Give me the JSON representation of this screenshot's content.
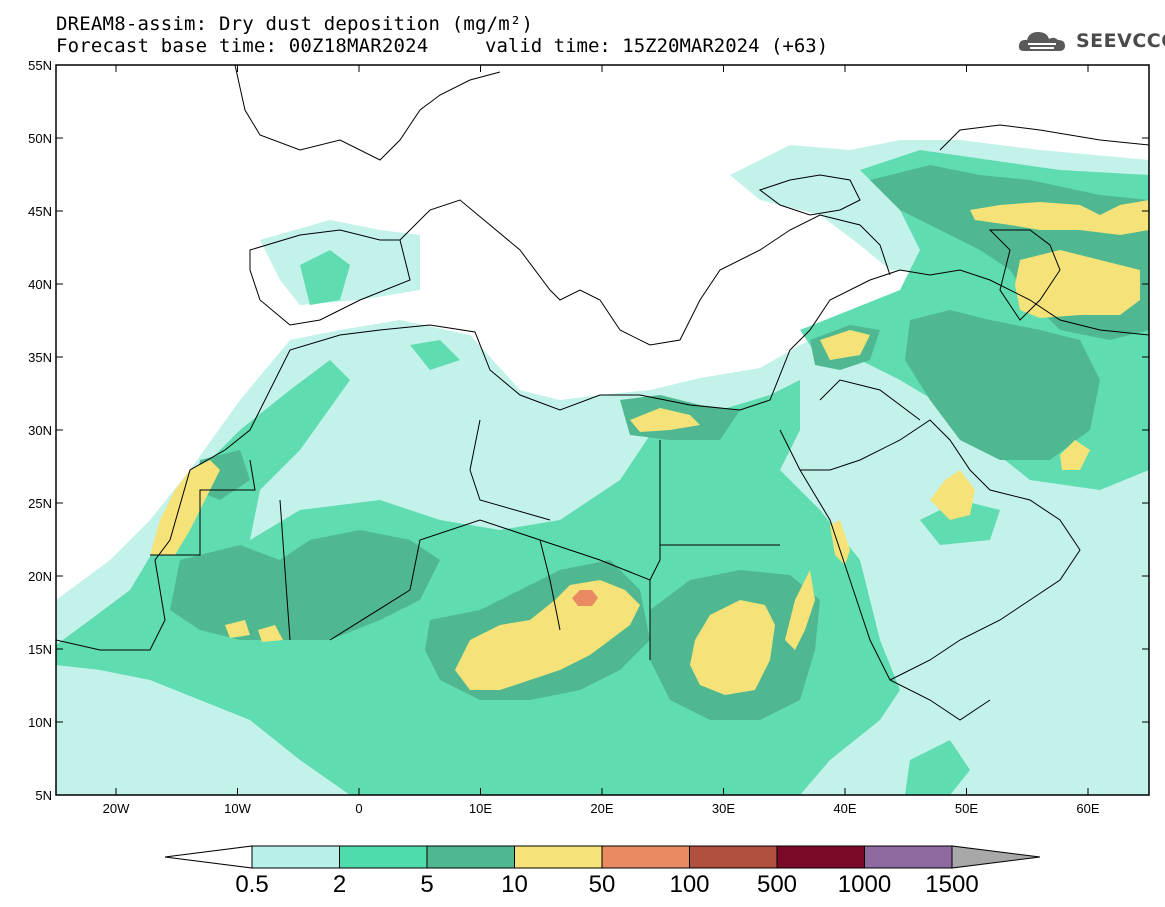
{
  "title": {
    "line1": "DREAM8-assim: Dry dust deposition (mg/m²)",
    "line2a": "Forecast base time: 00Z18MAR2024",
    "line2b": "valid time: 15Z20MAR2024 (+63)"
  },
  "logo": {
    "text": "SEEVCCC",
    "icon": "cloud-logo-icon"
  },
  "axes": {
    "lat_labels": [
      "55N",
      "50N",
      "45N",
      "40N",
      "35N",
      "30N",
      "25N",
      "20N",
      "15N",
      "10N",
      "5N"
    ],
    "lon_labels": [
      "20W",
      "10W",
      "0",
      "10E",
      "20E",
      "30E",
      "40E",
      "50E",
      "60E"
    ]
  },
  "colorbar": {
    "labels": [
      "0.5",
      "2",
      "5",
      "10",
      "50",
      "100",
      "500",
      "1000",
      "1500"
    ],
    "colors": [
      "#b7f0e6",
      "#4fdcac",
      "#4fb890",
      "#f5e37a",
      "#e98a63",
      "#b0503f",
      "#7a0a28",
      "#8e6aa0"
    ],
    "low_extend_color": "#ffffff",
    "high_extend_color": "#a8a8a8"
  },
  "map_colors": {
    "lightest": "#c2f2ea",
    "light": "#5fdcb0",
    "medium": "#4fb890",
    "high": "#f5e37a",
    "peak": "#e98a63",
    "ocean": "#ffffff",
    "coast": "#000000"
  }
}
